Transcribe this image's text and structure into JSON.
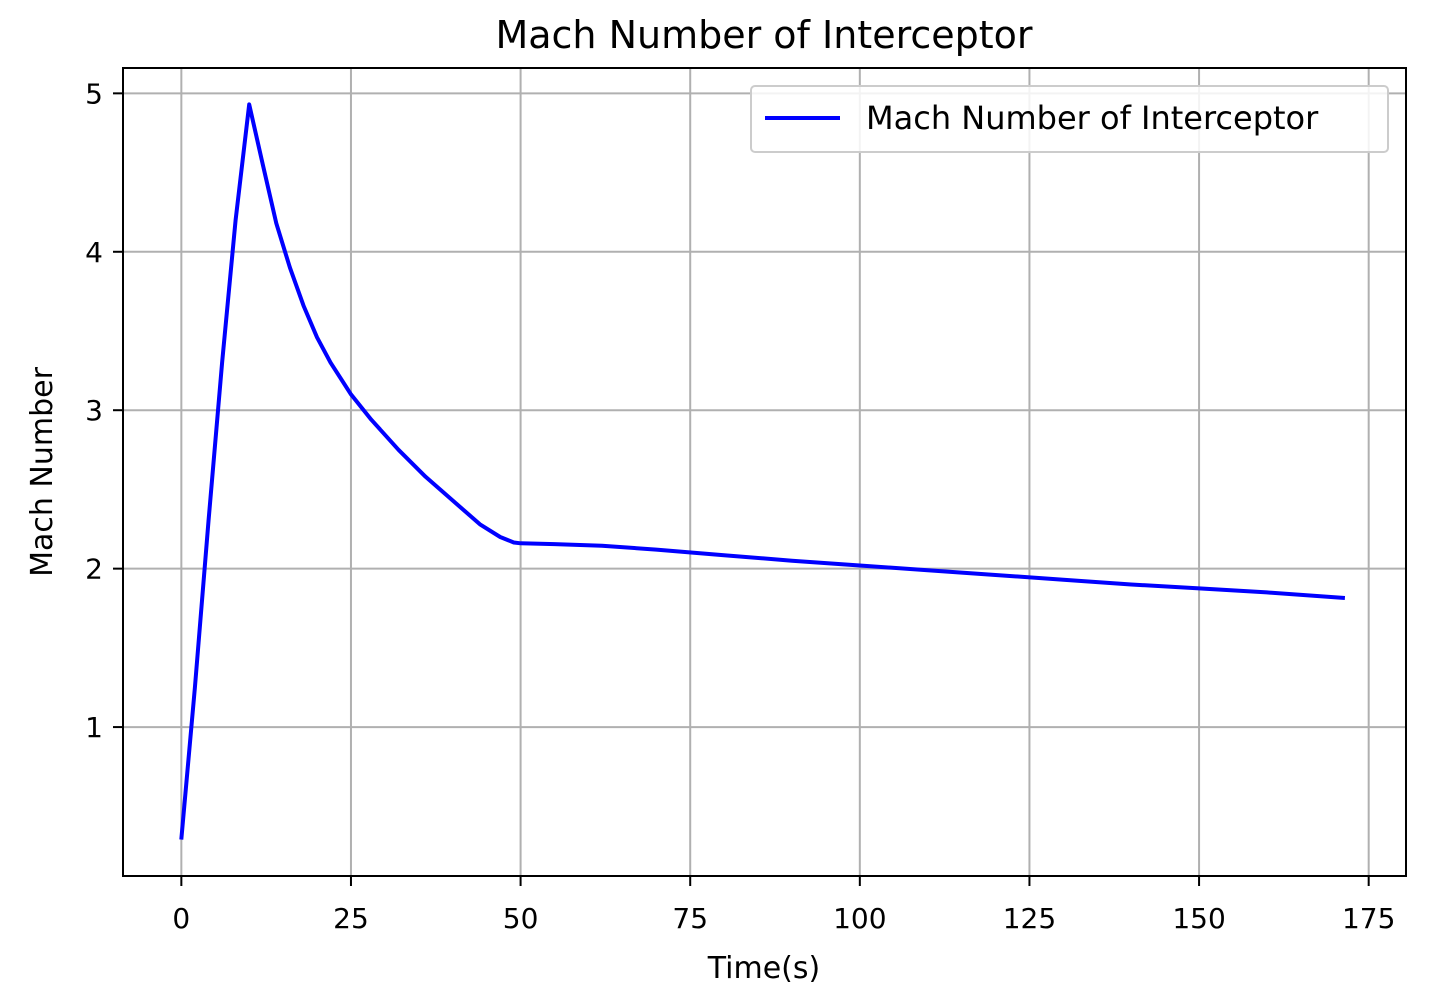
{
  "chart_data": {
    "type": "line",
    "title": "Mach Number of Interceptor",
    "xlabel": "Time(s)",
    "ylabel": "Mach Number",
    "xlim": [
      -8.6,
      180.5
    ],
    "ylim": [
      0.06,
      5.16
    ],
    "xticks": [
      0,
      25,
      50,
      75,
      100,
      125,
      150,
      175
    ],
    "yticks": [
      1,
      2,
      3,
      4,
      5
    ],
    "grid": true,
    "legend_position": "top-right",
    "series": [
      {
        "name": "Mach Number of Interceptor",
        "color": "#0000ff",
        "x": [
          0,
          2,
          4,
          6,
          8,
          10,
          12,
          14,
          16,
          18,
          20,
          22,
          25,
          28,
          32,
          36,
          40,
          44,
          47,
          49,
          50,
          55,
          62,
          70,
          80,
          90,
          100,
          110,
          120,
          130,
          140,
          150,
          160,
          171.5
        ],
        "y": [
          0.29,
          1.25,
          2.3,
          3.3,
          4.2,
          4.93,
          4.55,
          4.18,
          3.9,
          3.66,
          3.46,
          3.3,
          3.1,
          2.94,
          2.75,
          2.58,
          2.43,
          2.28,
          2.2,
          2.165,
          2.16,
          2.155,
          2.145,
          2.12,
          2.085,
          2.05,
          2.02,
          1.99,
          1.96,
          1.93,
          1.9,
          1.875,
          1.85,
          1.815
        ]
      }
    ]
  }
}
